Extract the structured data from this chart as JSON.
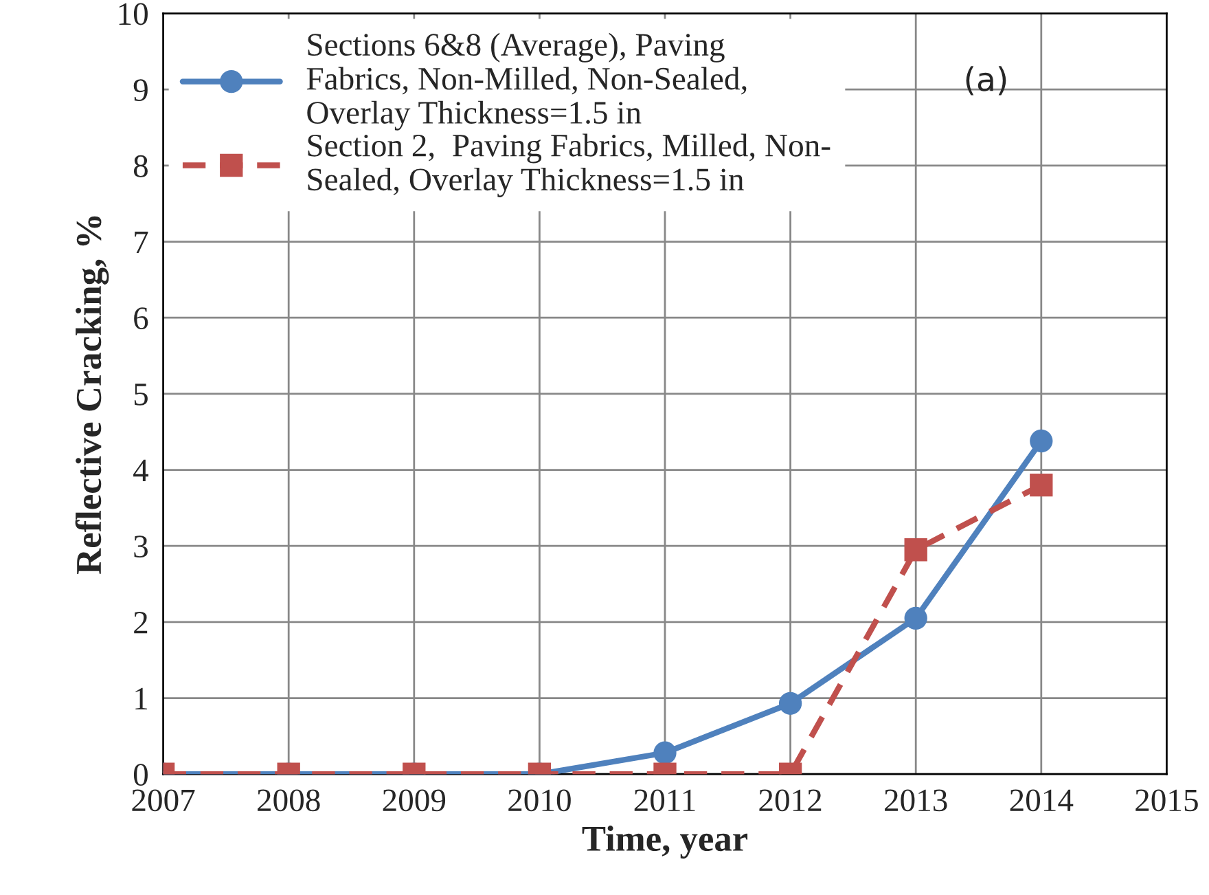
{
  "chart_data": {
    "type": "line",
    "xlabel": "Time, year",
    "ylabel": "Reflective Cracking, %",
    "x": [
      2007,
      2008,
      2009,
      2010,
      2011,
      2012,
      2013,
      2014
    ],
    "series": [
      {
        "name": "Sections 6&8 (Average), Paving\nFabrics, Non-Milled, Non-Sealed,\nOverlay Thickness=1.5 in",
        "color": "#4f81bd",
        "marker": "circle",
        "line_style": "solid",
        "values": [
          0,
          0,
          0,
          0,
          0.28,
          0.93,
          2.05,
          4.38
        ]
      },
      {
        "name": "Section 2,  Paving Fabrics, Milled, Non-\nSealed, Overlay Thickness=1.5 in",
        "color": "#c0504d",
        "marker": "square",
        "line_style": "dashed",
        "values": [
          0,
          0,
          0,
          0,
          0,
          0,
          2.95,
          3.8
        ]
      }
    ],
    "annotations": [
      "(a)"
    ],
    "xlim": [
      2007,
      2015
    ],
    "xticks": [
      2007,
      2008,
      2009,
      2010,
      2011,
      2012,
      2013,
      2014,
      2015
    ],
    "ylim": [
      0,
      10
    ],
    "yticks": [
      0,
      1,
      2,
      3,
      4,
      5,
      6,
      7,
      8,
      9,
      10
    ],
    "grid": true,
    "legend": "top left"
  }
}
